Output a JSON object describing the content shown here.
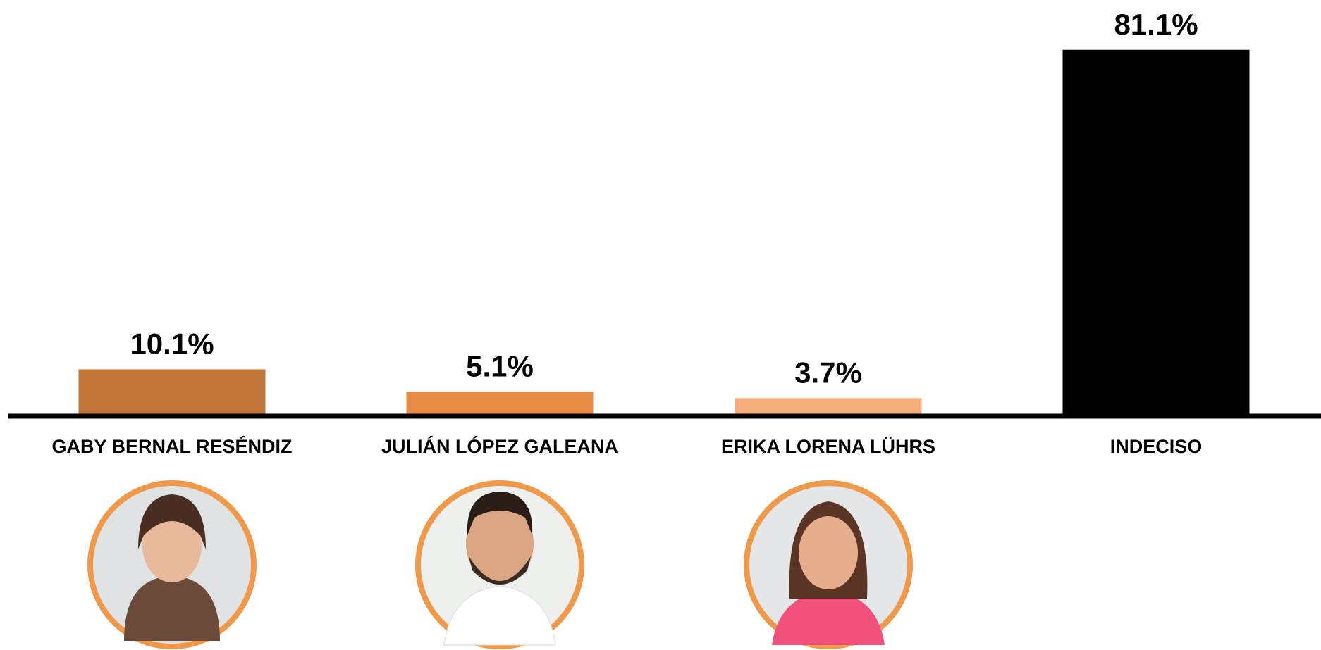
{
  "chart_data": {
    "type": "bar",
    "categories": [
      "GABY BERNAL RESÉNDIZ",
      "JULIÁN LÓPEZ GALEANA",
      "ERIKA LORENA LÜHRS",
      "INDECISO"
    ],
    "values": [
      10.1,
      5.1,
      3.7,
      81.1
    ],
    "value_labels": [
      "10.1%",
      "5.1%",
      "3.7%",
      "81.1%"
    ],
    "colors": [
      "#c0763a",
      "#e88c45",
      "#f6ad7c",
      "#000000"
    ]
  }
}
